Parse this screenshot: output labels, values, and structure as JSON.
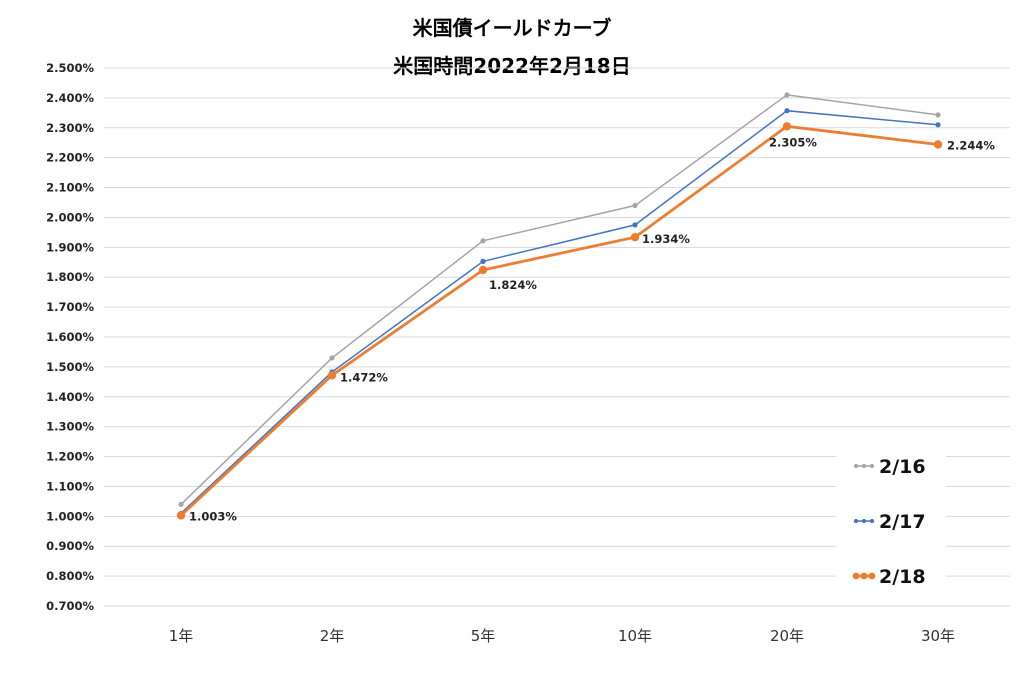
{
  "chart_data": {
    "type": "line",
    "title": "米国債イールドカーブ",
    "subtitle": "米国時間2022年2月18日",
    "categories": [
      "1年",
      "2年",
      "5年",
      "10年",
      "20年",
      "30年"
    ],
    "yticks": [
      "2.500%",
      "2.400%",
      "2.300%",
      "2.200%",
      "2.100%",
      "2.000%",
      "1.900%",
      "1.800%",
      "1.700%",
      "1.600%",
      "1.500%",
      "1.400%",
      "1.300%",
      "1.200%",
      "1.100%",
      "1.000%",
      "0.900%",
      "0.800%",
      "0.700%"
    ],
    "ylim": [
      0.7,
      2.5
    ],
    "grid": true,
    "legend_position": "bottom-right",
    "series": [
      {
        "name": "2/16",
        "color": "#a5a5a5",
        "values": [
          1.04,
          1.53,
          1.922,
          2.04,
          2.41,
          2.343
        ]
      },
      {
        "name": "2/17",
        "color": "#4472c4",
        "values": [
          1.01,
          1.483,
          1.853,
          1.975,
          2.357,
          2.31
        ]
      },
      {
        "name": "2/18",
        "color": "#ed7d31",
        "values": [
          1.003,
          1.472,
          1.824,
          1.934,
          2.305,
          2.244
        ]
      }
    ],
    "data_labels": [
      "1.003%",
      "1.472%",
      "1.824%",
      "1.934%",
      "2.305%",
      "2.244%"
    ]
  }
}
